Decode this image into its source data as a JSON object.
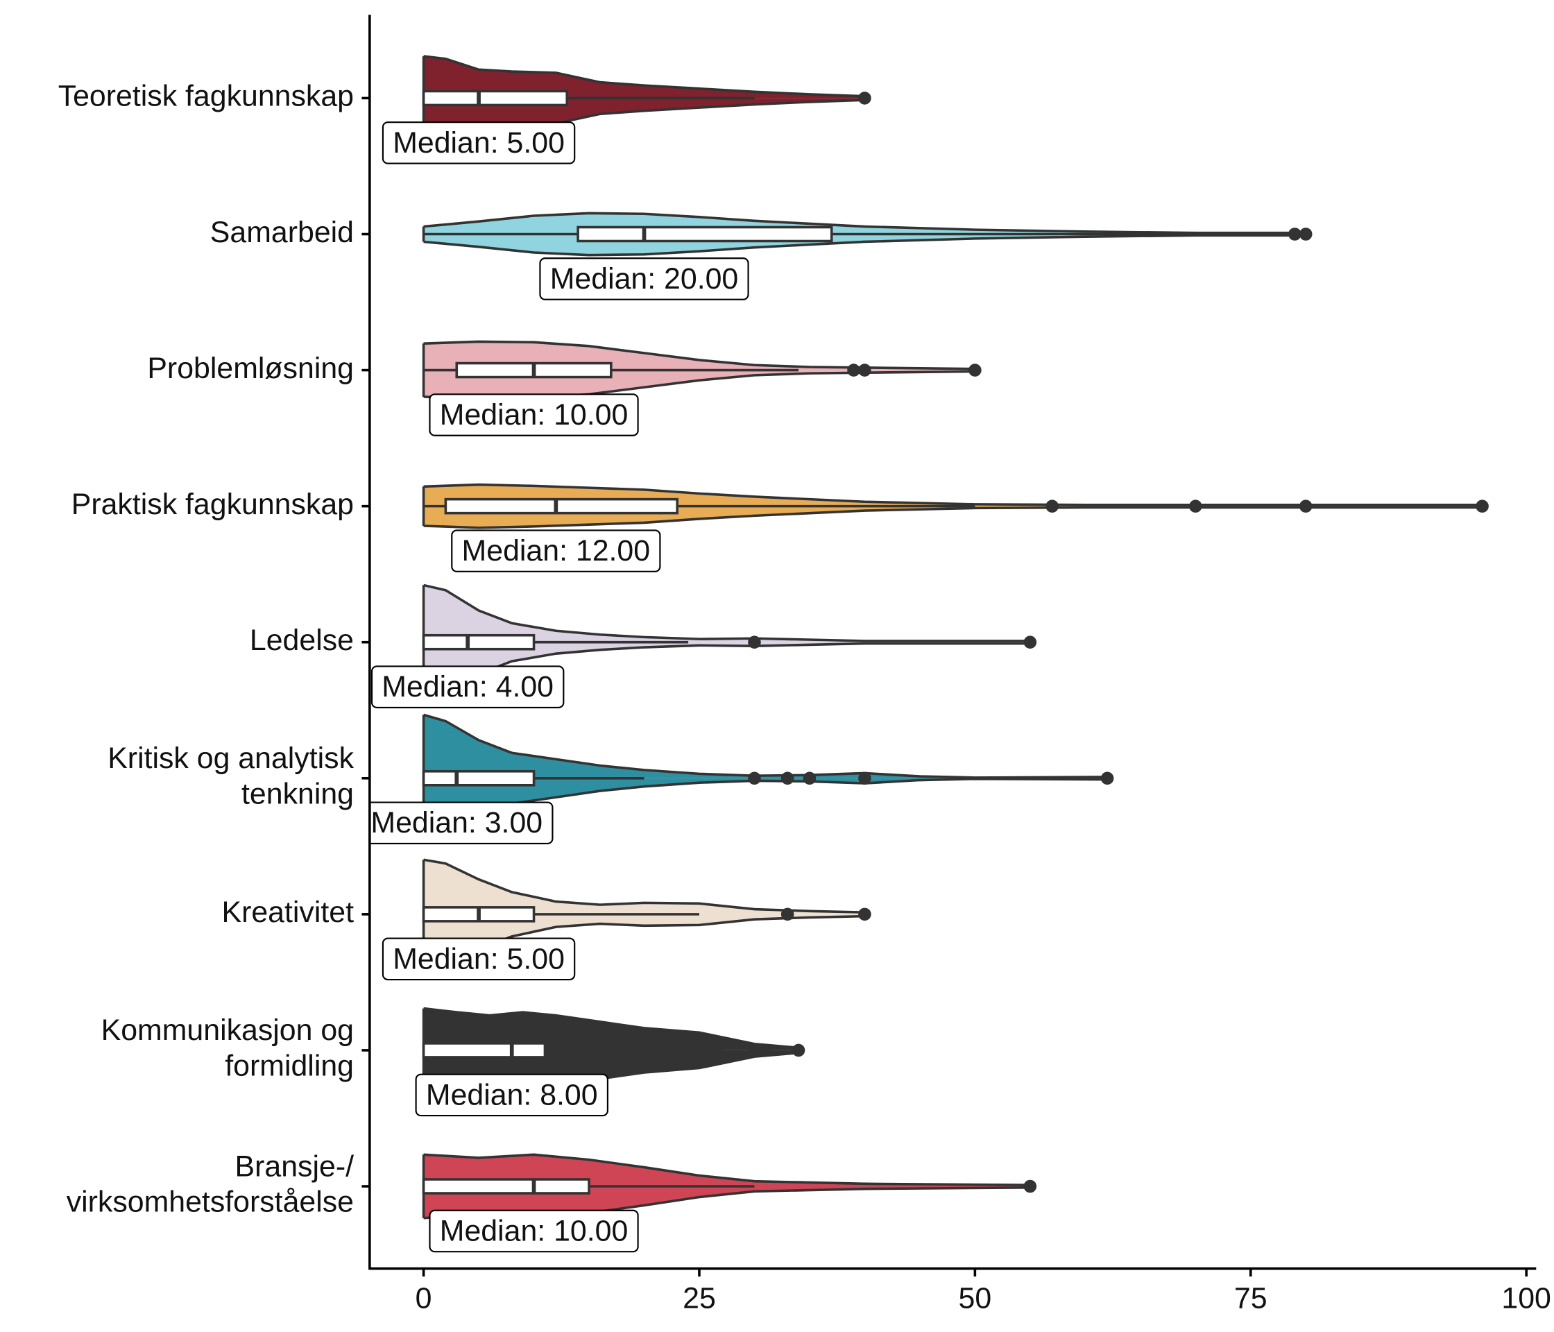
{
  "chart_data": {
    "type": "violin-box",
    "orientation": "horizontal",
    "categories": [
      "Teoretisk fagkunnskap",
      "Samarbeid",
      "Problemløsning",
      "Praktisk fagkunnskap",
      "Ledelse",
      "Kritisk og analytisk\ntenkning",
      "Kreativitet",
      "Kommunikasjon og\nformidling",
      "Bransje-/\nvirksomhetsforståelse"
    ],
    "colors": [
      "#7f222e",
      "#8fd4de",
      "#e8b0b7",
      "#e8ac55",
      "#dbd3e2",
      "#2e8fa0",
      "#eee0d0",
      "#333333",
      "#cf4556"
    ],
    "whisker_low": [
      0,
      0,
      0,
      0,
      0,
      0,
      0,
      0,
      0
    ],
    "q1": [
      0,
      14,
      3,
      2,
      0,
      0,
      0,
      0,
      0
    ],
    "median": [
      5,
      20,
      10,
      12,
      4,
      3,
      5,
      8,
      10
    ],
    "q3": [
      13,
      37,
      17,
      23,
      10,
      10,
      10,
      11,
      15
    ],
    "whisker_high": [
      30,
      70,
      34,
      50,
      24,
      20,
      25,
      27,
      30
    ],
    "outliers": [
      [
        40
      ],
      [
        79,
        80
      ],
      [
        39,
        40,
        50
      ],
      [
        57,
        70,
        80,
        96
      ],
      [
        30,
        55
      ],
      [
        30,
        33,
        35,
        40,
        62
      ],
      [
        33,
        40
      ],
      [
        30,
        31,
        34
      ],
      [
        55
      ]
    ],
    "value_labels": [
      "Median: 5.00",
      "Median: 20.00",
      "Median: 10.00",
      "Median: 12.00",
      "Median: 4.00",
      "Median: 3.00",
      "Median: 5.00",
      "Median: 8.00",
      "Median: 10.00"
    ],
    "density_x": [
      [
        0,
        2,
        5,
        8,
        12,
        16,
        20,
        25,
        30,
        35,
        40
      ],
      [
        0,
        5,
        10,
        15,
        20,
        25,
        30,
        40,
        50,
        60,
        70,
        80
      ],
      [
        0,
        5,
        10,
        15,
        20,
        25,
        30,
        35,
        40,
        45,
        50
      ],
      [
        0,
        5,
        10,
        15,
        20,
        25,
        30,
        40,
        50,
        60,
        70,
        80,
        96
      ],
      [
        0,
        2,
        5,
        8,
        12,
        16,
        20,
        25,
        30,
        40,
        55
      ],
      [
        0,
        2,
        5,
        8,
        12,
        16,
        20,
        25,
        30,
        35,
        40,
        45,
        50,
        62
      ],
      [
        0,
        2,
        5,
        8,
        12,
        16,
        20,
        25,
        30,
        35,
        40
      ],
      [
        0,
        3,
        6,
        9,
        12,
        16,
        20,
        25,
        30,
        34
      ],
      [
        0,
        5,
        10,
        15,
        20,
        25,
        30,
        40,
        55
      ]
    ],
    "density": [
      [
        0.66,
        0.62,
        0.45,
        0.42,
        0.4,
        0.25,
        0.2,
        0.15,
        0.1,
        0.06,
        0.03
      ],
      [
        0.12,
        0.2,
        0.29,
        0.33,
        0.32,
        0.27,
        0.21,
        0.12,
        0.07,
        0.04,
        0.02,
        0.02
      ],
      [
        0.42,
        0.45,
        0.44,
        0.38,
        0.27,
        0.16,
        0.08,
        0.05,
        0.04,
        0.03,
        0.02
      ],
      [
        0.31,
        0.34,
        0.32,
        0.29,
        0.26,
        0.2,
        0.15,
        0.07,
        0.03,
        0.02,
        0.02,
        0.02,
        0.02
      ],
      [
        0.9,
        0.82,
        0.5,
        0.3,
        0.18,
        0.12,
        0.08,
        0.05,
        0.06,
        0.02,
        0.02
      ],
      [
        1.0,
        0.9,
        0.6,
        0.4,
        0.3,
        0.2,
        0.13,
        0.07,
        0.04,
        0.05,
        0.08,
        0.03,
        0.01,
        0.02
      ],
      [
        0.86,
        0.8,
        0.55,
        0.35,
        0.2,
        0.15,
        0.18,
        0.17,
        0.08,
        0.05,
        0.03
      ],
      [
        0.66,
        0.6,
        0.55,
        0.6,
        0.55,
        0.45,
        0.35,
        0.28,
        0.1,
        0.04
      ],
      [
        0.5,
        0.45,
        0.5,
        0.42,
        0.3,
        0.17,
        0.08,
        0.04,
        0.02
      ]
    ],
    "xlim": [
      -4.8,
      100.8
    ],
    "xticks": [
      0,
      25,
      50,
      75,
      100
    ]
  }
}
